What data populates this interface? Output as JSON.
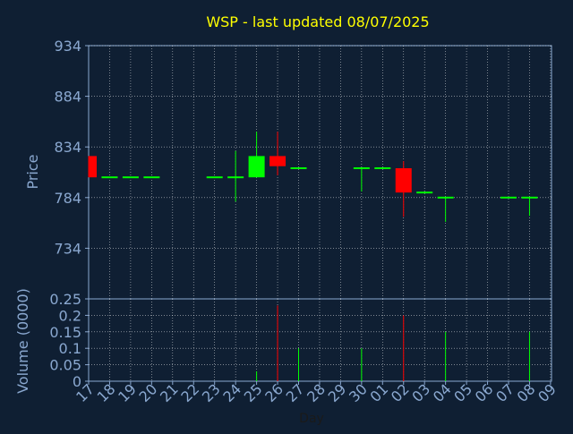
{
  "title": "WSP - last updated 08/07/2025",
  "colors": {
    "background": "#0f1f33",
    "title": "#ffff00",
    "axis": "#8aa8d0",
    "up": "#00ff00",
    "down": "#ff0000",
    "grid": "#ffffff"
  },
  "chart_data": [
    {
      "type": "candlestick",
      "ylabel": "Price",
      "ylim": [
        684,
        934
      ],
      "yticks": [
        934,
        884,
        834,
        784,
        734
      ],
      "grid": true,
      "x": [
        "17",
        "18",
        "19",
        "20",
        "21",
        "22",
        "23",
        "24",
        "25",
        "26",
        "27",
        "28",
        "29",
        "30",
        "01",
        "02",
        "03",
        "04",
        "05",
        "06",
        "07",
        "08",
        "09"
      ],
      "candles": [
        {
          "x": "17",
          "open": 825,
          "high": 825,
          "low": 804,
          "close": 804
        },
        {
          "x": "18",
          "open": 804,
          "high": 804,
          "low": 804,
          "close": 804
        },
        {
          "x": "19",
          "open": 804,
          "high": 804,
          "low": 804,
          "close": 804
        },
        {
          "x": "20",
          "open": 804,
          "high": 804,
          "low": 804,
          "close": 804
        },
        {
          "x": "23",
          "open": 804,
          "high": 804,
          "low": 804,
          "close": 804
        },
        {
          "x": "24",
          "open": 804,
          "high": 830,
          "low": 780,
          "close": 804
        },
        {
          "x": "25",
          "open": 804,
          "high": 849,
          "low": 804,
          "close": 825
        },
        {
          "x": "26",
          "open": 825,
          "high": 849,
          "low": 806,
          "close": 815
        },
        {
          "x": "27",
          "open": 813,
          "high": 813,
          "low": 813,
          "close": 813
        },
        {
          "x": "30",
          "open": 813,
          "high": 813,
          "low": 790,
          "close": 813
        },
        {
          "x": "01",
          "open": 813,
          "high": 813,
          "low": 813,
          "close": 813
        },
        {
          "x": "02",
          "open": 813,
          "high": 820,
          "low": 765,
          "close": 789
        },
        {
          "x": "03",
          "open": 789,
          "high": 789,
          "low": 789,
          "close": 789
        },
        {
          "x": "04",
          "open": 784,
          "high": 784,
          "low": 760,
          "close": 784
        },
        {
          "x": "07",
          "open": 784,
          "high": 784,
          "low": 784,
          "close": 784
        },
        {
          "x": "08",
          "open": 784,
          "high": 784,
          "low": 766,
          "close": 784
        }
      ]
    },
    {
      "type": "bar",
      "ylabel": "Volume (0000)",
      "xlabel": "Day",
      "ylim": [
        0,
        0.25
      ],
      "yticks": [
        "0.25",
        "0.2",
        "0.15",
        "0.1",
        "0.05",
        "0"
      ],
      "ytick_values": [
        0.25,
        0.2,
        0.15,
        0.1,
        0.05,
        0
      ],
      "grid": true,
      "bars": [
        {
          "x": "25",
          "value": 0.03,
          "dir": "up"
        },
        {
          "x": "26",
          "value": 0.23,
          "dir": "down"
        },
        {
          "x": "27",
          "value": 0.1,
          "dir": "up"
        },
        {
          "x": "30",
          "value": 0.1,
          "dir": "up"
        },
        {
          "x": "02",
          "value": 0.2,
          "dir": "down"
        },
        {
          "x": "04",
          "value": 0.15,
          "dir": "up"
        },
        {
          "x": "08",
          "value": 0.15,
          "dir": "up"
        }
      ]
    }
  ]
}
